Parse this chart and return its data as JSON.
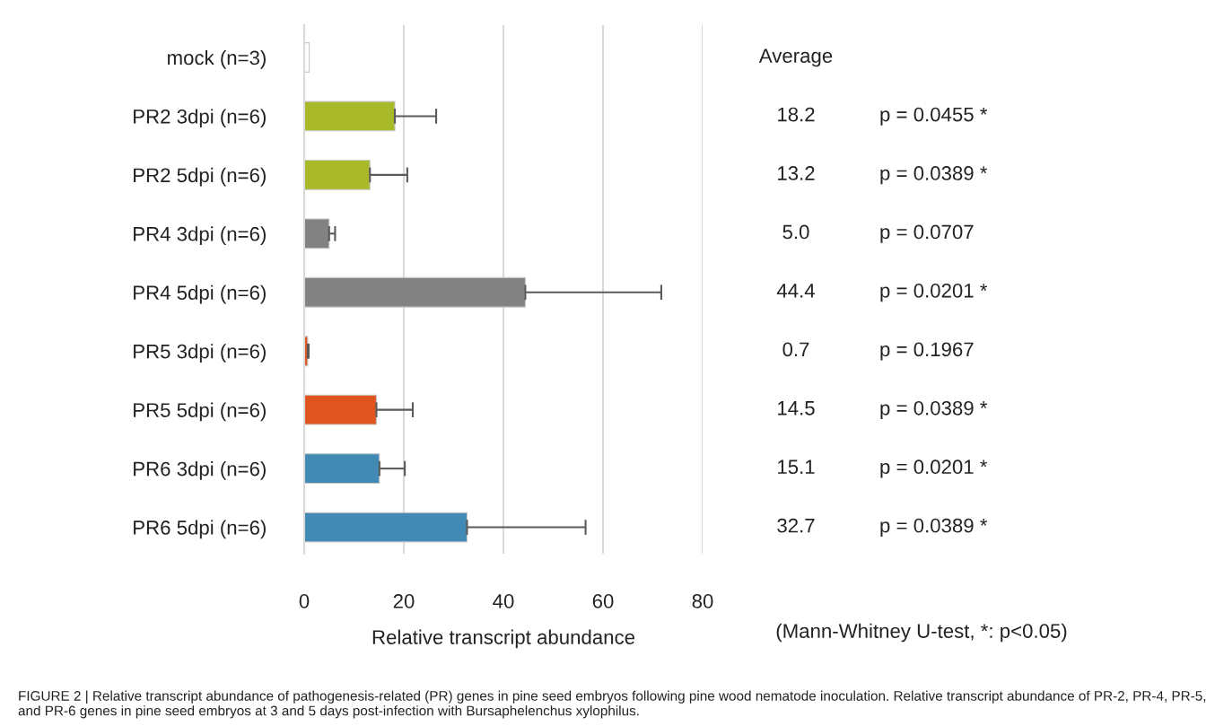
{
  "chart_data": {
    "type": "bar",
    "orientation": "horizontal",
    "categories": [
      "mock (n=3)",
      "PR2 3dpi (n=6)",
      "PR2 5dpi (n=6)",
      "PR4 3dpi (n=6)",
      "PR4 5dpi (n=6)",
      "PR5 3dpi (n=6)",
      "PR5 5dpi (n=6)",
      "PR6 3dpi (n=6)",
      "PR6 5dpi (n=6)"
    ],
    "values": [
      1.0,
      18.2,
      13.2,
      5.0,
      44.4,
      0.7,
      14.5,
      15.1,
      32.7
    ],
    "errors": [
      null,
      [
        18.2,
        26.5
      ],
      [
        13.2,
        20.7
      ],
      [
        5.0,
        6.2
      ],
      [
        44.4,
        71.7
      ],
      [
        0.7,
        0.9
      ],
      [
        14.5,
        21.8
      ],
      [
        15.1,
        20.2
      ],
      [
        32.7,
        56.5
      ]
    ],
    "colors": [
      "#ffffff",
      "#a8b92a",
      "#a8b92a",
      "#828282",
      "#828282",
      "#e0541f",
      "#e0541f",
      "#418ab5",
      "#418ab5"
    ],
    "value_labels": [
      null,
      "18.2",
      "13.2",
      "5.0",
      "44.4",
      "0.7",
      "14.5",
      "15.1",
      "32.7"
    ],
    "xlim": [
      0,
      80
    ],
    "xticks": [
      0,
      20,
      40,
      60,
      80
    ],
    "grid": "x",
    "xlabel": "Relative transcript abundance",
    "annotations": [
      "Average",
      "p = 0.0455 *",
      "p = 0.0389 *",
      "p = 0.0707",
      "p = 0.0201 *",
      "p = 0.1967",
      "p = 0.0389 *",
      "p = 0.0201 *",
      "p = 0.0389 *",
      "(Mann-Whitney U-test, *: p<0.05)",
      "FIGURE 2 | Relative transcript abundance of pathogenesis-related (PR) genes in pine seed embryos following pine wood nematode inoculation. Relative transcript abundance of PR-2, PR-4, PR-5, and PR-6 genes in pine seed embryos at 3 and 5 days post-infection with Bursaphelenchus xylophilus."
    ]
  }
}
